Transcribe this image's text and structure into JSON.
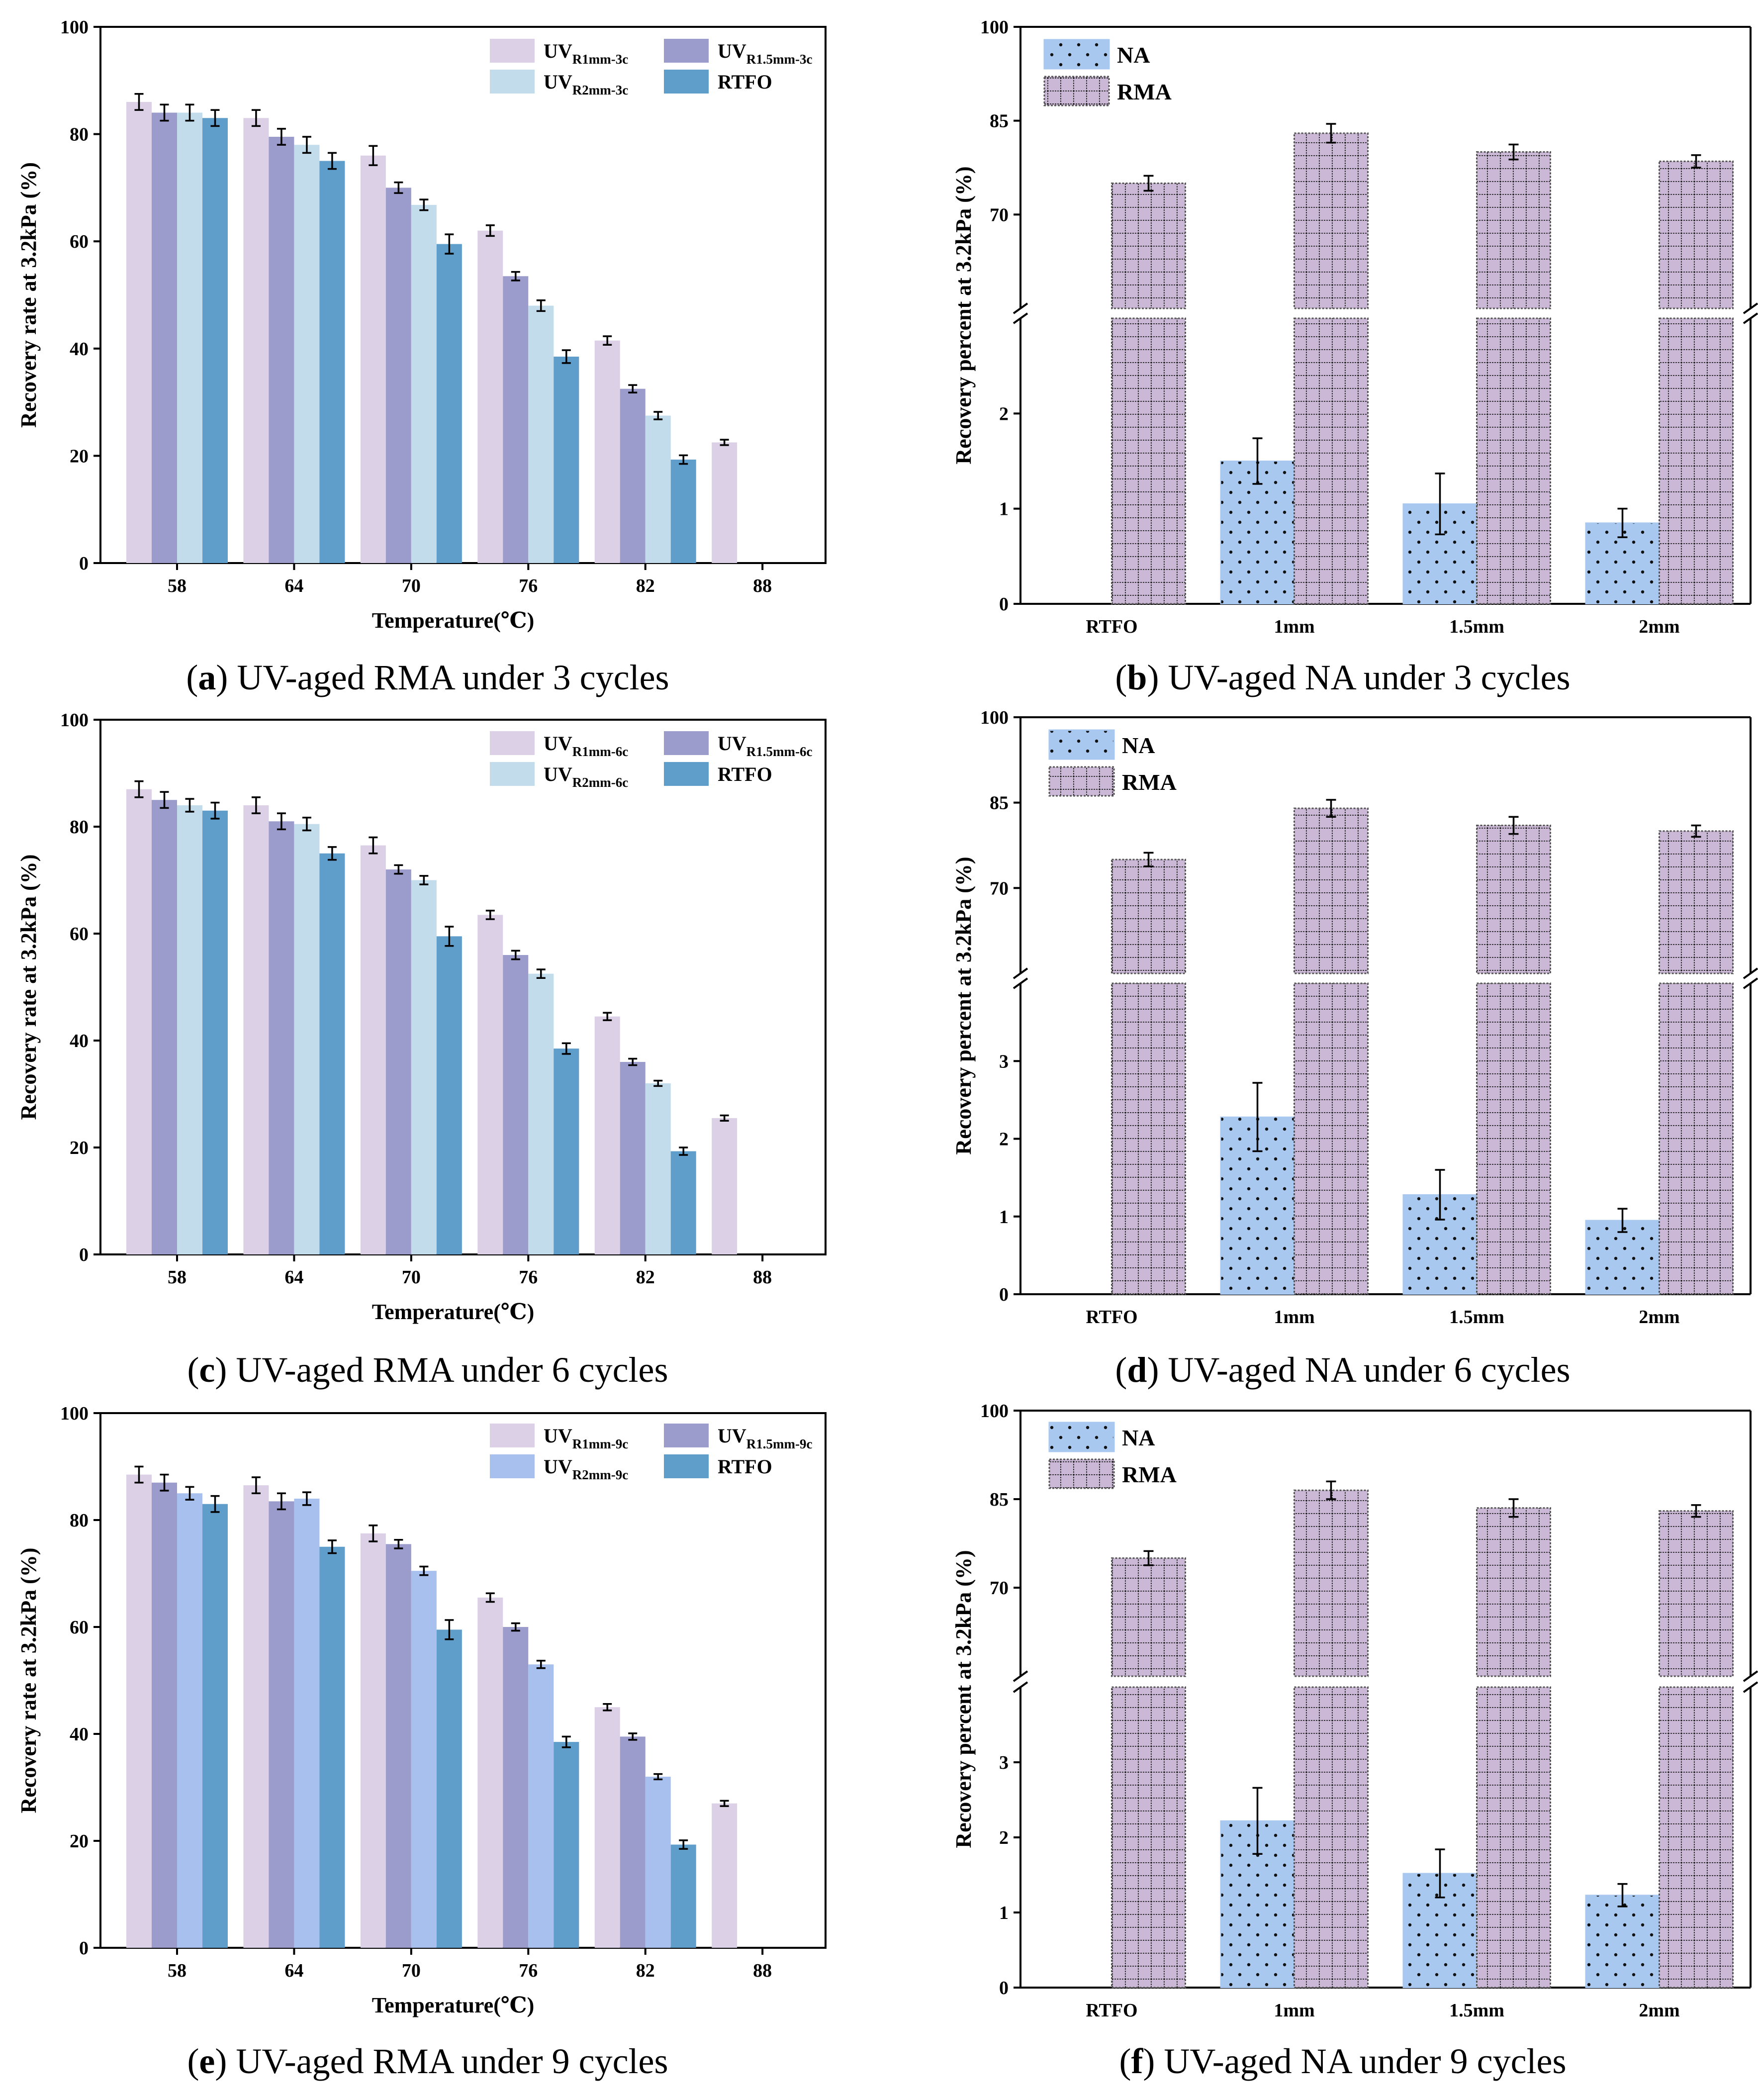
{
  "colors": {
    "R1mm": "#dcd0e6",
    "R1p5mm": "#9b9bcc",
    "R2mm_light": "#c2dcec",
    "R2mm_9c": "#a7c0ee",
    "RTFO": "#5f9ecb",
    "NA": "#a8c8f0",
    "RMA": "#cbb8d6",
    "error_bar": "#000000"
  },
  "chart_data": [
    {
      "panel": "a",
      "type": "bar",
      "caption_letter": "a",
      "caption_text": "UV-aged RMA under 3 cycles",
      "xlabel": "Temperature(℃)",
      "ylabel": "Recovery rate at 3.2kPa (%)",
      "ylim": [
        0,
        100
      ],
      "yticks": [
        "0",
        "20",
        "40",
        "60",
        "80",
        "100"
      ],
      "categories": [
        "58",
        "64",
        "70",
        "76",
        "82",
        "88"
      ],
      "legend_position": "top-right",
      "series": [
        {
          "key": "R1mm",
          "legend_main": "UV",
          "legend_sub": "R1mm-3c",
          "values": [
            86.0,
            83.0,
            76.0,
            62.0,
            41.5,
            22.5
          ],
          "errors": [
            1.5,
            1.5,
            1.8,
            1.0,
            0.8,
            0.5
          ]
        },
        {
          "key": "R1p5mm",
          "legend_main": "UV",
          "legend_sub": "R1.5mm-3c",
          "values": [
            84.0,
            79.5,
            70.0,
            53.5,
            32.5,
            null
          ],
          "errors": [
            1.5,
            1.5,
            1.0,
            0.8,
            0.7,
            null
          ]
        },
        {
          "key": "R2mm_light",
          "legend_main": "UV",
          "legend_sub": "R2mm-3c",
          "values": [
            84.0,
            78.0,
            66.8,
            48.0,
            27.5,
            null
          ],
          "errors": [
            1.5,
            1.5,
            1.0,
            1.0,
            0.7,
            null
          ]
        },
        {
          "key": "RTFO",
          "legend_main": "RTFO",
          "legend_sub": "",
          "values": [
            83.0,
            75.0,
            59.5,
            38.5,
            19.3,
            null
          ],
          "errors": [
            1.5,
            1.5,
            1.8,
            1.2,
            0.8,
            null
          ]
        }
      ]
    },
    {
      "panel": "b",
      "type": "bar",
      "caption_letter": "b",
      "caption_text": "UV-aged NA under 3 cycles",
      "ylabel": "Recovery percent at 3.2kPa  (%)",
      "categories": [
        "RTFO",
        "1mm",
        "1.5mm",
        "2mm"
      ],
      "broken_axis": {
        "lower_range": [
          0,
          3
        ],
        "upper_range": [
          55,
          100
        ]
      },
      "lower_yticks": [
        "0",
        "1",
        "2"
      ],
      "upper_yticks": [
        "70",
        "85",
        "100"
      ],
      "legend_position": "top-left",
      "series": [
        {
          "key": "NA",
          "legend_main": "NA",
          "values": [
            null,
            1.5,
            1.05,
            0.85
          ],
          "errors": [
            null,
            0.24,
            0.32,
            0.15
          ]
        },
        {
          "key": "RMA",
          "legend_main": "RMA",
          "values": [
            75.0,
            83.0,
            80.0,
            78.5
          ],
          "errors": [
            1.2,
            1.5,
            1.2,
            1.0
          ]
        }
      ]
    },
    {
      "panel": "c",
      "type": "bar",
      "caption_letter": "c",
      "caption_text": "UV-aged RMA under 6 cycles",
      "xlabel": "Temperature(℃)",
      "ylabel": "Recovery rate at 3.2kPa (%)",
      "ylim": [
        0,
        100
      ],
      "yticks": [
        "0",
        "20",
        "40",
        "60",
        "80",
        "100"
      ],
      "categories": [
        "58",
        "64",
        "70",
        "76",
        "82",
        "88"
      ],
      "legend_position": "top-right",
      "series": [
        {
          "key": "R1mm",
          "legend_main": "UV",
          "legend_sub": "R1mm-6c",
          "values": [
            87.0,
            84.0,
            76.5,
            63.5,
            44.5,
            25.5
          ],
          "errors": [
            1.5,
            1.5,
            1.5,
            0.8,
            0.7,
            0.5
          ]
        },
        {
          "key": "R1p5mm",
          "legend_main": "UV",
          "legend_sub": "R1.5mm-6c",
          "values": [
            85.0,
            81.0,
            72.0,
            56.0,
            36.0,
            null
          ],
          "errors": [
            1.5,
            1.5,
            0.8,
            0.8,
            0.6,
            null
          ]
        },
        {
          "key": "R2mm_light",
          "legend_main": "UV",
          "legend_sub": "R2mm-6c",
          "values": [
            84.0,
            80.5,
            70.0,
            52.5,
            32.0,
            null
          ],
          "errors": [
            1.2,
            1.2,
            0.8,
            0.8,
            0.5,
            null
          ]
        },
        {
          "key": "RTFO",
          "legend_main": "RTFO",
          "legend_sub": "",
          "values": [
            83.0,
            75.0,
            59.5,
            38.5,
            19.3,
            null
          ],
          "errors": [
            1.5,
            1.2,
            1.8,
            1.0,
            0.7,
            null
          ]
        }
      ]
    },
    {
      "panel": "d",
      "type": "bar",
      "caption_letter": "d",
      "caption_text": "UV-aged NA under 6 cycles",
      "ylabel": "Recovery percent at 3.2kPa  (%)",
      "categories": [
        "RTFO",
        "1mm",
        "1.5mm",
        "2mm"
      ],
      "broken_axis": {
        "lower_range": [
          0,
          4
        ],
        "upper_range": [
          55,
          100
        ]
      },
      "lower_yticks": [
        "0",
        "1",
        "2",
        "3"
      ],
      "upper_yticks": [
        "70",
        "85",
        "100"
      ],
      "legend_position": "top-left",
      "series": [
        {
          "key": "NA",
          "legend_main": "NA",
          "values": [
            null,
            2.28,
            1.28,
            0.95
          ],
          "errors": [
            null,
            0.44,
            0.32,
            0.15
          ]
        },
        {
          "key": "RMA",
          "legend_main": "RMA",
          "values": [
            75.0,
            84.0,
            81.0,
            80.0
          ],
          "errors": [
            1.2,
            1.5,
            1.5,
            1.0
          ]
        }
      ]
    },
    {
      "panel": "e",
      "type": "bar",
      "caption_letter": "e",
      "caption_text": "UV-aged RMA under 9 cycles",
      "xlabel": "Temperature(℃)",
      "ylabel": "Recovery rate at 3.2kPa (%)",
      "ylim": [
        0,
        100
      ],
      "yticks": [
        "0",
        "20",
        "40",
        "60",
        "80",
        "100"
      ],
      "categories": [
        "58",
        "64",
        "70",
        "76",
        "82",
        "88"
      ],
      "legend_position": "top-right",
      "series": [
        {
          "key": "R1mm",
          "legend_main": "UV",
          "legend_sub": "R1mm-9c",
          "values": [
            88.5,
            86.5,
            77.5,
            65.5,
            45.0,
            27.0
          ],
          "errors": [
            1.5,
            1.5,
            1.5,
            0.8,
            0.6,
            0.5
          ]
        },
        {
          "key": "R1p5mm",
          "legend_main": "UV",
          "legend_sub": "R1.5mm-9c",
          "values": [
            87.0,
            83.5,
            75.5,
            60.0,
            39.5,
            null
          ],
          "errors": [
            1.5,
            1.5,
            0.8,
            0.7,
            0.6,
            null
          ]
        },
        {
          "key": "R2mm_9c",
          "legend_main": "UV",
          "legend_sub": "R2mm-9c",
          "values": [
            85.0,
            84.0,
            70.5,
            53.0,
            32.0,
            null
          ],
          "errors": [
            1.2,
            1.2,
            0.8,
            0.7,
            0.5,
            null
          ]
        },
        {
          "key": "RTFO",
          "legend_main": "RTFO",
          "legend_sub": "",
          "values": [
            83.0,
            75.0,
            59.5,
            38.5,
            19.3,
            null
          ],
          "errors": [
            1.5,
            1.2,
            1.8,
            1.0,
            0.8,
            null
          ]
        }
      ]
    },
    {
      "panel": "f",
      "type": "bar",
      "caption_letter": "f",
      "caption_text": "UV-aged NA under 9 cycles",
      "ylabel": "Recovery percent at 3.2kPa  (%)",
      "categories": [
        "RTFO",
        "1mm",
        "1.5mm",
        "2mm"
      ],
      "broken_axis": {
        "lower_range": [
          0,
          4
        ],
        "upper_range": [
          55,
          100
        ]
      },
      "lower_yticks": [
        "0",
        "1",
        "2",
        "3"
      ],
      "upper_yticks": [
        "70",
        "85",
        "100"
      ],
      "legend_position": "top-left",
      "series": [
        {
          "key": "NA",
          "legend_main": "NA",
          "values": [
            null,
            2.22,
            1.52,
            1.23
          ],
          "errors": [
            null,
            0.44,
            0.32,
            0.15
          ]
        },
        {
          "key": "RMA",
          "legend_main": "RMA",
          "values": [
            75.0,
            86.5,
            83.5,
            83.0
          ],
          "errors": [
            1.2,
            1.5,
            1.5,
            1.0
          ]
        }
      ]
    }
  ]
}
